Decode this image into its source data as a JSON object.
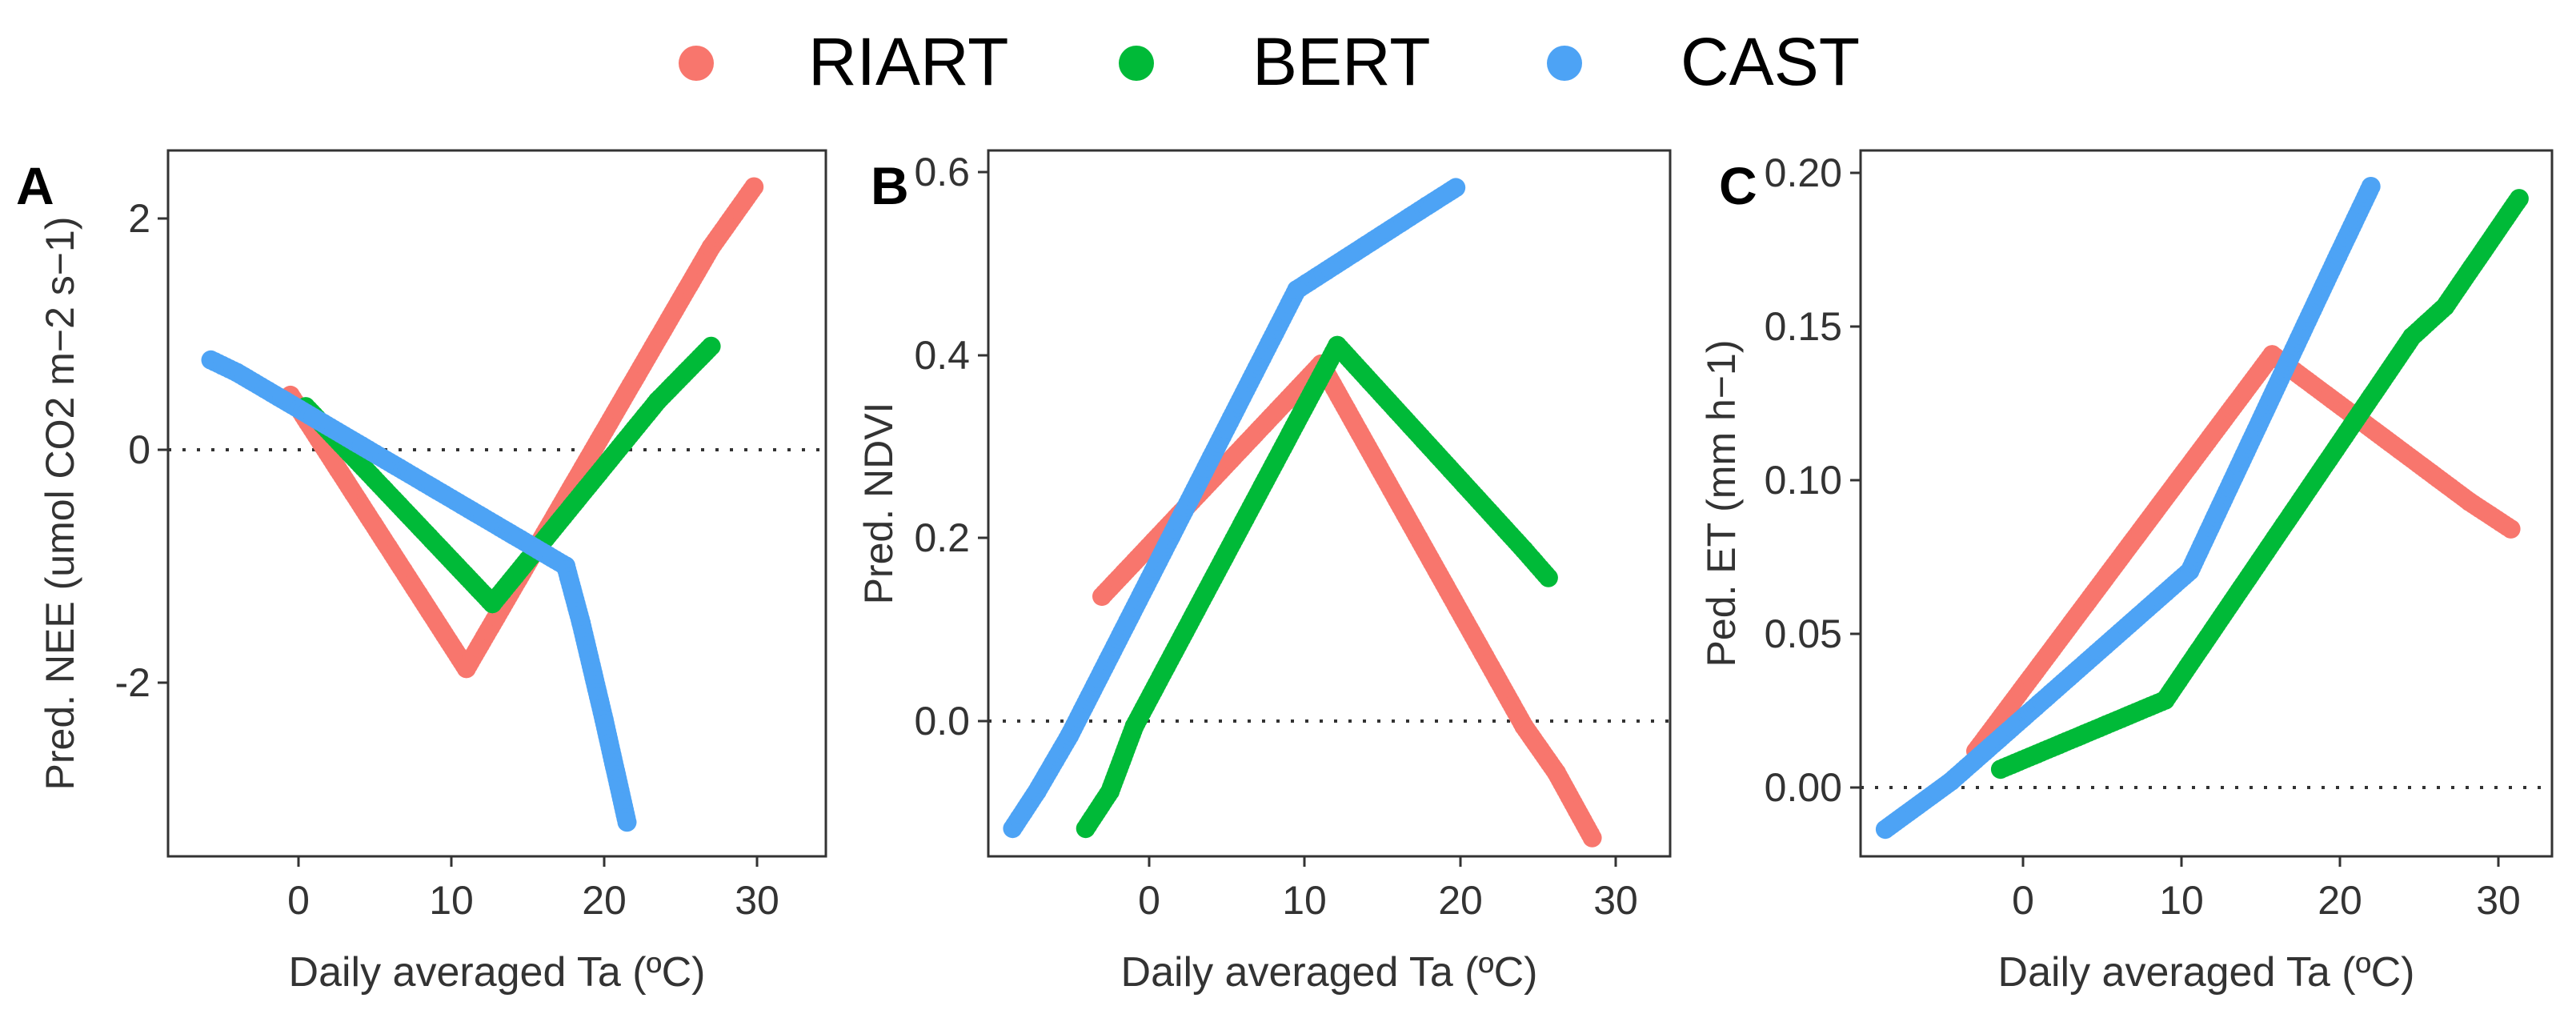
{
  "legend": {
    "entries": [
      {
        "name": "RIART",
        "color": "#F8766D"
      },
      {
        "name": "BERT",
        "color": "#00BA38"
      },
      {
        "name": "CAST",
        "color": "#4DA3F5"
      }
    ]
  },
  "chart_data": [
    {
      "type": "scatter",
      "panel": "A",
      "xlabel": "Daily averaged Ta (ºC)",
      "ylabel": "Pred. NEE (umol CO2 m−2 s−1)",
      "xlim": [
        -10,
        33
      ],
      "ylim": [
        -3.6,
        2.6
      ],
      "xticks": [
        0,
        10,
        20,
        30
      ],
      "yticks": [
        -2,
        0,
        2
      ],
      "hline": 0,
      "series": [
        {
          "name": "RIART",
          "points": [
            [
              -2,
              0.45
            ],
            [
              9.5,
              -1.95
            ],
            [
              25.5,
              1.75
            ],
            [
              28.3,
              2.28
            ]
          ]
        },
        {
          "name": "BERT",
          "points": [
            [
              -1,
              0.35
            ],
            [
              11.2,
              -1.38
            ],
            [
              22,
              0.4
            ],
            [
              25.5,
              0.88
            ]
          ]
        },
        {
          "name": "CAST",
          "points": [
            [
              -7.2,
              0.76
            ],
            [
              -5.5,
              0.65
            ],
            [
              16,
              -1.05
            ],
            [
              17,
              -1.55
            ],
            [
              18.5,
              -2.4
            ],
            [
              20,
              -3.3
            ]
          ]
        }
      ]
    },
    {
      "type": "scatter",
      "panel": "B",
      "xlabel": "Daily averaged Ta (ºC)",
      "ylabel": "Pred. NDVI",
      "xlim": [
        -9,
        33
      ],
      "ylim": [
        -0.14,
        0.62
      ],
      "xticks": [
        0,
        10,
        20,
        30
      ],
      "yticks": [
        0.0,
        0.2,
        0.4,
        0.6
      ],
      "ytick_labels": [
        "0.0",
        "0.2",
        "0.4",
        "0.6"
      ],
      "hline": 0,
      "series": [
        {
          "name": "RIART",
          "points": [
            [
              -2,
              0.14
            ],
            [
              11.5,
              0.39
            ],
            [
              24,
              0.0
            ],
            [
              26,
              -0.05
            ],
            [
              28.2,
              -0.12
            ]
          ]
        },
        {
          "name": "BERT",
          "points": [
            [
              -3,
              -0.11
            ],
            [
              -1.5,
              -0.07
            ],
            [
              0,
              0.0
            ],
            [
              12.5,
              0.41
            ],
            [
              24,
              0.19
            ],
            [
              25.5,
              0.16
            ]
          ]
        },
        {
          "name": "CAST",
          "points": [
            [
              -7.5,
              -0.11
            ],
            [
              -6,
              -0.07
            ],
            [
              -4,
              -0.01
            ],
            [
              10,
              0.47
            ],
            [
              18,
              0.56
            ],
            [
              19.8,
              0.58
            ]
          ]
        }
      ]
    },
    {
      "type": "scatter",
      "panel": "C",
      "xlabel": "Daily averaged Ta (ºC)",
      "ylabel": "Ped. ET (mm h−1)",
      "xlim": [
        -9,
        33
      ],
      "ylim": [
        -0.025,
        0.21
      ],
      "xticks": [
        0,
        10,
        20,
        30
      ],
      "yticks": [
        0.0,
        0.05,
        0.1,
        0.15,
        0.2
      ],
      "ytick_labels": [
        "0.00",
        "0.05",
        "0.10",
        "0.15",
        "0.20"
      ],
      "hline": 0,
      "series": [
        {
          "name": "RIART",
          "points": [
            [
              -2,
              0.01
            ],
            [
              16,
              0.142
            ],
            [
              28,
              0.093
            ],
            [
              30.5,
              0.084
            ]
          ]
        },
        {
          "name": "BERT",
          "points": [
            [
              -0.5,
              0.004
            ],
            [
              9.5,
              0.027
            ],
            [
              24.5,
              0.148
            ],
            [
              26.5,
              0.158
            ],
            [
              31,
              0.194
            ]
          ]
        },
        {
          "name": "CAST",
          "points": [
            [
              -7.5,
              -0.016
            ],
            [
              -3.5,
              0.0
            ],
            [
              11,
              0.07
            ],
            [
              20,
              0.175
            ],
            [
              22,
              0.198
            ]
          ]
        }
      ]
    }
  ]
}
